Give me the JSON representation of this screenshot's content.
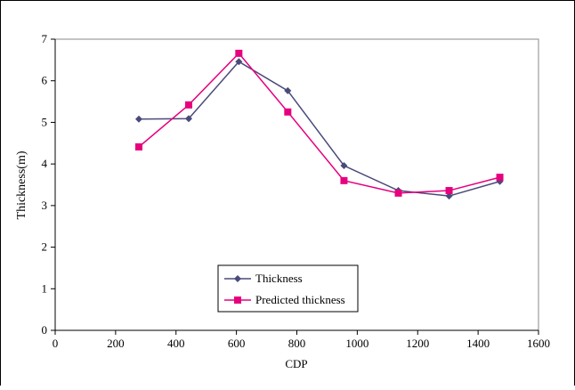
{
  "chart_data": {
    "type": "line",
    "x_label": "CDP",
    "y_label": "Thickness(m)",
    "x": [
      277,
      442,
      608,
      770,
      956,
      1136,
      1304,
      1472
    ],
    "series": [
      {
        "name": "Thickness",
        "color": "#4a4a7a",
        "marker": "diamond",
        "values": [
          5.08,
          5.09,
          6.46,
          5.76,
          3.96,
          3.36,
          3.23,
          3.58
        ]
      },
      {
        "name": "Predicted thickness",
        "color": "#e6007e",
        "marker": "square",
        "values": [
          4.41,
          5.42,
          6.66,
          5.25,
          3.6,
          3.3,
          3.36,
          3.68
        ]
      }
    ],
    "xlim": [
      0,
      1600
    ],
    "xticks": [
      0,
      200,
      400,
      600,
      800,
      1000,
      1200,
      1400,
      1600
    ],
    "ylim": [
      0,
      7
    ],
    "yticks": [
      0,
      1,
      2,
      3,
      4,
      5,
      6,
      7
    ]
  }
}
